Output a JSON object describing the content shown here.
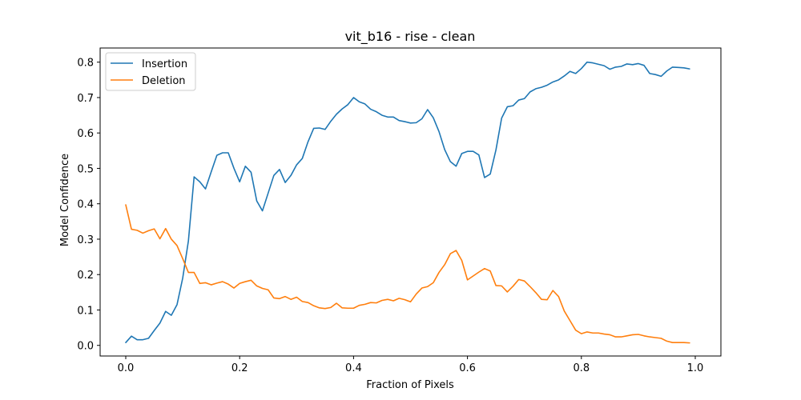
{
  "chart_data": {
    "type": "line",
    "title": "vit_b16 - rise - clean",
    "xlabel": "Fraction of Pixels",
    "ylabel": "Model Confidence",
    "xlim": [
      -0.045,
      1.045
    ],
    "ylim": [
      -0.03,
      0.84
    ],
    "xticks": [
      0.0,
      0.2,
      0.4,
      0.6,
      0.8,
      1.0
    ],
    "xtick_labels": [
      "0.0",
      "0.2",
      "0.4",
      "0.6",
      "0.8",
      "1.0"
    ],
    "yticks": [
      0.0,
      0.1,
      0.2,
      0.3,
      0.4,
      0.5,
      0.6,
      0.7,
      0.8
    ],
    "ytick_labels": [
      "0.0",
      "0.1",
      "0.2",
      "0.3",
      "0.4",
      "0.5",
      "0.6",
      "0.7",
      "0.8"
    ],
    "grid": false,
    "legend_position": "top-left",
    "series": [
      {
        "name": "Insertion",
        "color": "#1f77b4",
        "points": [
          [
            0.0,
            0.008
          ],
          [
            0.01,
            0.026
          ],
          [
            0.02,
            0.016
          ],
          [
            0.03,
            0.016
          ],
          [
            0.04,
            0.02
          ],
          [
            0.05,
            0.042
          ],
          [
            0.06,
            0.063
          ],
          [
            0.07,
            0.096
          ],
          [
            0.08,
            0.085
          ],
          [
            0.09,
            0.115
          ],
          [
            0.1,
            0.19
          ],
          [
            0.11,
            0.295
          ],
          [
            0.12,
            0.476
          ],
          [
            0.13,
            0.462
          ],
          [
            0.14,
            0.442
          ],
          [
            0.15,
            0.49
          ],
          [
            0.16,
            0.537
          ],
          [
            0.17,
            0.544
          ],
          [
            0.18,
            0.544
          ],
          [
            0.19,
            0.5
          ],
          [
            0.2,
            0.462
          ],
          [
            0.21,
            0.506
          ],
          [
            0.22,
            0.489
          ],
          [
            0.23,
            0.408
          ],
          [
            0.24,
            0.38
          ],
          [
            0.25,
            0.43
          ],
          [
            0.26,
            0.48
          ],
          [
            0.27,
            0.497
          ],
          [
            0.28,
            0.46
          ],
          [
            0.29,
            0.48
          ],
          [
            0.3,
            0.51
          ],
          [
            0.31,
            0.528
          ],
          [
            0.32,
            0.575
          ],
          [
            0.33,
            0.613
          ],
          [
            0.34,
            0.614
          ],
          [
            0.35,
            0.61
          ],
          [
            0.36,
            0.633
          ],
          [
            0.37,
            0.653
          ],
          [
            0.38,
            0.668
          ],
          [
            0.39,
            0.68
          ],
          [
            0.4,
            0.7
          ],
          [
            0.41,
            0.688
          ],
          [
            0.42,
            0.682
          ],
          [
            0.43,
            0.667
          ],
          [
            0.44,
            0.66
          ],
          [
            0.45,
            0.65
          ],
          [
            0.46,
            0.645
          ],
          [
            0.47,
            0.645
          ],
          [
            0.48,
            0.635
          ],
          [
            0.49,
            0.632
          ],
          [
            0.5,
            0.628
          ],
          [
            0.51,
            0.629
          ],
          [
            0.52,
            0.64
          ],
          [
            0.53,
            0.666
          ],
          [
            0.54,
            0.643
          ],
          [
            0.55,
            0.604
          ],
          [
            0.56,
            0.553
          ],
          [
            0.57,
            0.519
          ],
          [
            0.58,
            0.506
          ],
          [
            0.59,
            0.542
          ],
          [
            0.6,
            0.548
          ],
          [
            0.61,
            0.548
          ],
          [
            0.62,
            0.538
          ],
          [
            0.63,
            0.474
          ],
          [
            0.64,
            0.484
          ],
          [
            0.65,
            0.552
          ],
          [
            0.66,
            0.642
          ],
          [
            0.67,
            0.674
          ],
          [
            0.68,
            0.677
          ],
          [
            0.69,
            0.693
          ],
          [
            0.7,
            0.697
          ],
          [
            0.71,
            0.716
          ],
          [
            0.72,
            0.725
          ],
          [
            0.73,
            0.729
          ],
          [
            0.74,
            0.735
          ],
          [
            0.75,
            0.744
          ],
          [
            0.76,
            0.75
          ],
          [
            0.77,
            0.761
          ],
          [
            0.78,
            0.774
          ],
          [
            0.79,
            0.768
          ],
          [
            0.8,
            0.782
          ],
          [
            0.81,
            0.8
          ],
          [
            0.82,
            0.798
          ],
          [
            0.83,
            0.794
          ],
          [
            0.84,
            0.79
          ],
          [
            0.85,
            0.78
          ],
          [
            0.86,
            0.786
          ],
          [
            0.87,
            0.788
          ],
          [
            0.88,
            0.795
          ],
          [
            0.89,
            0.793
          ],
          [
            0.9,
            0.796
          ],
          [
            0.91,
            0.791
          ],
          [
            0.92,
            0.768
          ],
          [
            0.93,
            0.765
          ],
          [
            0.94,
            0.76
          ],
          [
            0.95,
            0.775
          ],
          [
            0.96,
            0.786
          ],
          [
            0.97,
            0.785
          ],
          [
            0.98,
            0.784
          ],
          [
            0.99,
            0.781
          ]
        ]
      },
      {
        "name": "Deletion",
        "color": "#ff7f0e",
        "points": [
          [
            0.0,
            0.397
          ],
          [
            0.01,
            0.328
          ],
          [
            0.02,
            0.325
          ],
          [
            0.03,
            0.317
          ],
          [
            0.04,
            0.324
          ],
          [
            0.05,
            0.329
          ],
          [
            0.06,
            0.301
          ],
          [
            0.07,
            0.33
          ],
          [
            0.08,
            0.3
          ],
          [
            0.09,
            0.282
          ],
          [
            0.1,
            0.245
          ],
          [
            0.11,
            0.206
          ],
          [
            0.12,
            0.206
          ],
          [
            0.13,
            0.175
          ],
          [
            0.14,
            0.177
          ],
          [
            0.15,
            0.171
          ],
          [
            0.16,
            0.176
          ],
          [
            0.17,
            0.18
          ],
          [
            0.18,
            0.173
          ],
          [
            0.19,
            0.162
          ],
          [
            0.2,
            0.175
          ],
          [
            0.21,
            0.18
          ],
          [
            0.22,
            0.184
          ],
          [
            0.23,
            0.168
          ],
          [
            0.24,
            0.161
          ],
          [
            0.25,
            0.157
          ],
          [
            0.26,
            0.134
          ],
          [
            0.27,
            0.132
          ],
          [
            0.28,
            0.138
          ],
          [
            0.29,
            0.13
          ],
          [
            0.3,
            0.136
          ],
          [
            0.31,
            0.124
          ],
          [
            0.32,
            0.121
          ],
          [
            0.33,
            0.112
          ],
          [
            0.34,
            0.106
          ],
          [
            0.35,
            0.104
          ],
          [
            0.36,
            0.107
          ],
          [
            0.37,
            0.119
          ],
          [
            0.38,
            0.106
          ],
          [
            0.39,
            0.105
          ],
          [
            0.4,
            0.105
          ],
          [
            0.41,
            0.113
          ],
          [
            0.42,
            0.116
          ],
          [
            0.43,
            0.121
          ],
          [
            0.44,
            0.12
          ],
          [
            0.45,
            0.127
          ],
          [
            0.46,
            0.13
          ],
          [
            0.47,
            0.126
          ],
          [
            0.48,
            0.133
          ],
          [
            0.49,
            0.129
          ],
          [
            0.5,
            0.123
          ],
          [
            0.51,
            0.145
          ],
          [
            0.52,
            0.162
          ],
          [
            0.53,
            0.166
          ],
          [
            0.54,
            0.177
          ],
          [
            0.55,
            0.206
          ],
          [
            0.56,
            0.228
          ],
          [
            0.57,
            0.259
          ],
          [
            0.58,
            0.268
          ],
          [
            0.59,
            0.24
          ],
          [
            0.6,
            0.185
          ],
          [
            0.61,
            0.196
          ],
          [
            0.62,
            0.207
          ],
          [
            0.63,
            0.217
          ],
          [
            0.64,
            0.21
          ],
          [
            0.65,
            0.169
          ],
          [
            0.66,
            0.168
          ],
          [
            0.67,
            0.151
          ],
          [
            0.68,
            0.167
          ],
          [
            0.69,
            0.186
          ],
          [
            0.7,
            0.182
          ],
          [
            0.71,
            0.166
          ],
          [
            0.72,
            0.149
          ],
          [
            0.73,
            0.13
          ],
          [
            0.74,
            0.129
          ],
          [
            0.75,
            0.155
          ],
          [
            0.76,
            0.138
          ],
          [
            0.77,
            0.097
          ],
          [
            0.78,
            0.07
          ],
          [
            0.79,
            0.043
          ],
          [
            0.8,
            0.033
          ],
          [
            0.81,
            0.038
          ],
          [
            0.82,
            0.035
          ],
          [
            0.83,
            0.035
          ],
          [
            0.84,
            0.032
          ],
          [
            0.85,
            0.03
          ],
          [
            0.86,
            0.024
          ],
          [
            0.87,
            0.024
          ],
          [
            0.88,
            0.027
          ],
          [
            0.89,
            0.03
          ],
          [
            0.9,
            0.031
          ],
          [
            0.91,
            0.027
          ],
          [
            0.92,
            0.024
          ],
          [
            0.93,
            0.022
          ],
          [
            0.94,
            0.02
          ],
          [
            0.95,
            0.012
          ],
          [
            0.96,
            0.008
          ],
          [
            0.97,
            0.008
          ],
          [
            0.98,
            0.008
          ],
          [
            0.99,
            0.007
          ]
        ]
      }
    ]
  }
}
